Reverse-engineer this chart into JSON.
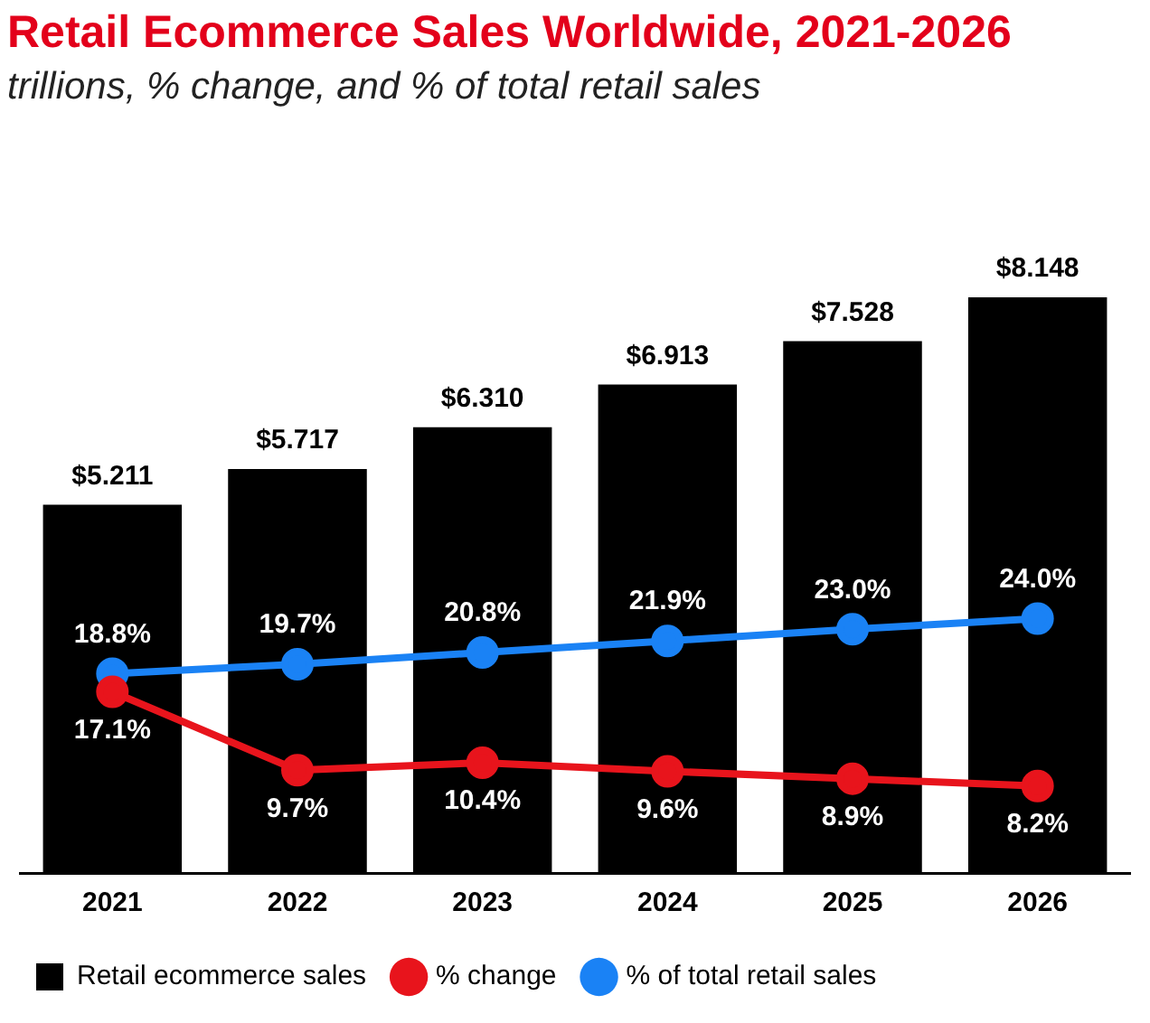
{
  "chart_data": {
    "type": "bar",
    "title": "Retail Ecommerce Sales Worldwide, 2021-2026",
    "subtitle": "trillions, % change, and % of total retail sales",
    "categories": [
      "2021",
      "2022",
      "2023",
      "2024",
      "2025",
      "2026"
    ],
    "series": [
      {
        "name": "Retail ecommerce sales",
        "color": "#000000",
        "values": [
          5.211,
          5.717,
          6.31,
          6.913,
          7.528,
          8.148
        ],
        "value_labels": [
          "$5.211",
          "$5.717",
          "$6.310",
          "$6.913",
          "$7.528",
          "$8.148"
        ]
      },
      {
        "name": "% change",
        "type": "line",
        "axis": "y2",
        "color": "#e8141c",
        "values": [
          17.1,
          9.7,
          10.4,
          9.6,
          8.9,
          8.2
        ],
        "value_labels": [
          "17.1%",
          "9.7%",
          "10.4%",
          "9.6%",
          "8.9%",
          "8.2%"
        ]
      },
      {
        "name": "% of total retail sales",
        "type": "line",
        "axis": "y2",
        "color": "#1a82f5",
        "values": [
          18.8,
          19.7,
          20.8,
          21.9,
          23.0,
          24.0
        ],
        "value_labels": [
          "18.8%",
          "19.7%",
          "20.8%",
          "21.9%",
          "23.0%",
          "24.0%"
        ]
      }
    ],
    "tick_labels": "x",
    "grid": false,
    "legend": "bottom",
    "marker": "circle",
    "line_style": "solid"
  }
}
